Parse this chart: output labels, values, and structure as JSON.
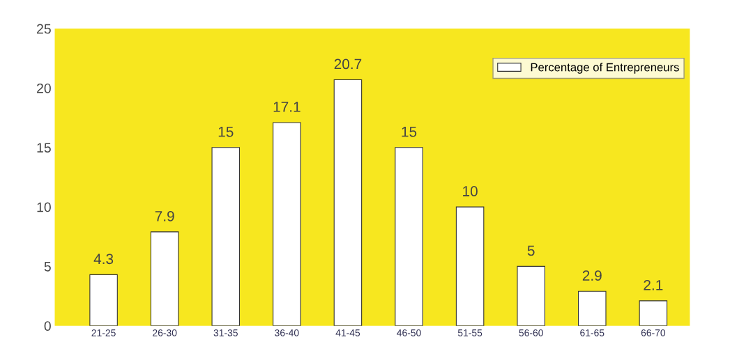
{
  "chart_data": {
    "type": "bar",
    "categories": [
      "21-25",
      "26-30",
      "31-35",
      "36-40",
      "41-45",
      "46-50",
      "51-55",
      "56-60",
      "61-65",
      "66-70"
    ],
    "series": [
      {
        "name": "Percentage of Entrepreneurs",
        "color": "#ffffff",
        "values": [
          4.3,
          7.9,
          15,
          17.1,
          20.7,
          15,
          10,
          5,
          2.9,
          2.1
        ]
      }
    ],
    "ylim": [
      0,
      25
    ],
    "yticks": [
      0,
      5,
      10,
      15,
      20,
      25
    ],
    "grid": false,
    "legend": "top right",
    "data_labels": true
  }
}
